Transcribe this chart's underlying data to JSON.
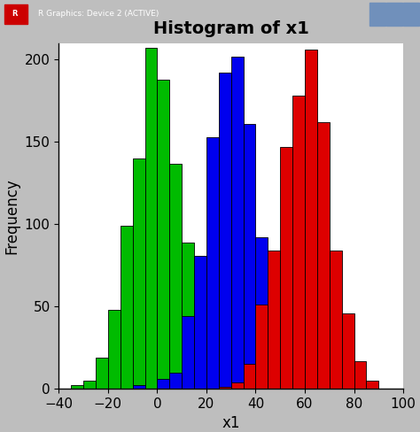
{
  "title": "Histogram of x1",
  "xlabel": "x1",
  "ylabel": "Frequency",
  "xlim": [
    -40,
    100
  ],
  "ylim": [
    0,
    210
  ],
  "xticks": [
    -40,
    -20,
    0,
    20,
    40,
    60,
    80,
    100
  ],
  "yticks": [
    0,
    50,
    100,
    150,
    200
  ],
  "hist1_mean": 0,
  "hist1_sd": 10,
  "hist1_n": 1000,
  "hist1_color": "#00BB00",
  "hist2_mean": 30,
  "hist2_sd": 10,
  "hist2_n": 1000,
  "hist2_color": "#0000EE",
  "hist3_mean": 60,
  "hist3_sd": 10,
  "hist3_n": 1000,
  "hist3_color": "#DD0000",
  "bin_width": 5,
  "bin_start": -40,
  "bin_end": 100,
  "bg_color": "#FFFFFF",
  "outer_bg": "#BEBEBE",
  "title_fontsize": 14,
  "axis_fontsize": 12,
  "tick_fontsize": 11,
  "titlebar_color": "#4A7DC0",
  "titlebar_text": "R Graphics: Device 2 (ACTIVE)",
  "seed": 123
}
